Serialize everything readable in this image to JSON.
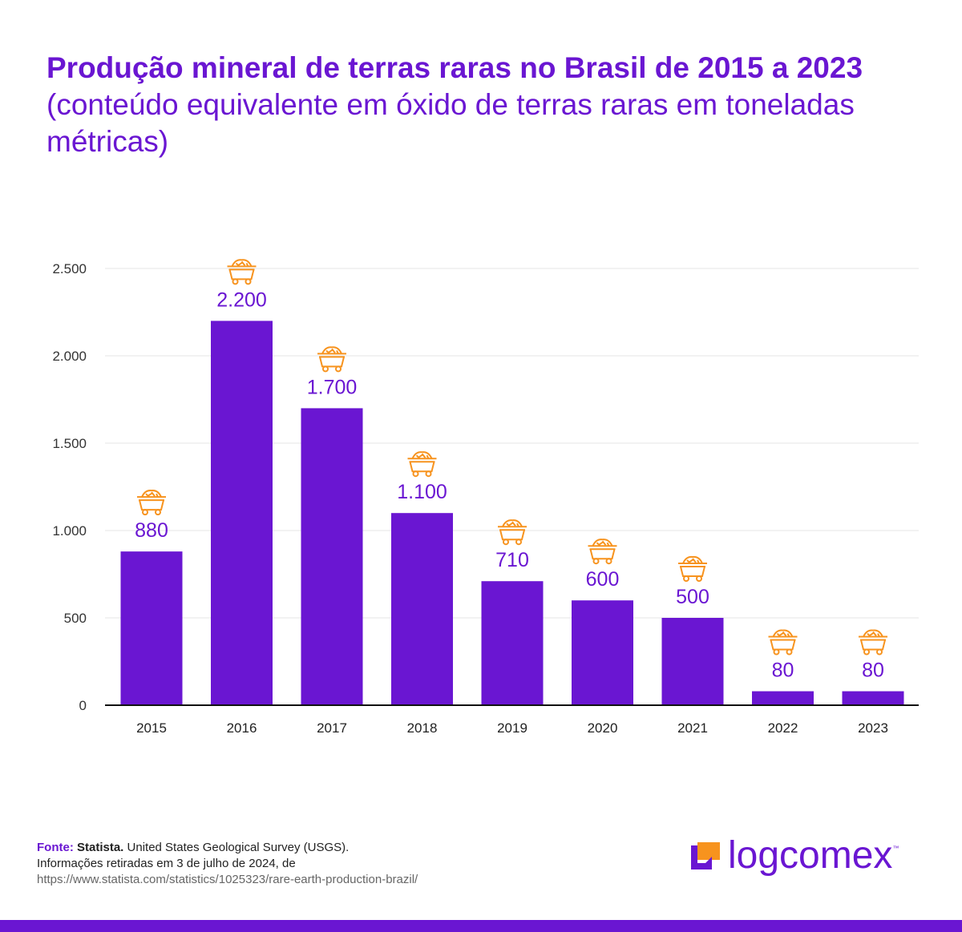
{
  "title": {
    "bold": "Produção mineral de terras raras no Brasil de 2015 a 2023",
    "regular": " (conteúdo equivalente em óxido de terras raras em toneladas métricas)"
  },
  "chart_data": {
    "type": "bar",
    "categories": [
      "2015",
      "2016",
      "2017",
      "2018",
      "2019",
      "2020",
      "2021",
      "2022",
      "2023"
    ],
    "values": [
      880,
      2200,
      1700,
      1100,
      710,
      600,
      500,
      80,
      80
    ],
    "data_labels": [
      "880",
      "2.200",
      "1.700",
      "1.100",
      "710",
      "600",
      "500",
      "80",
      "80"
    ],
    "ylim": [
      0,
      2500
    ],
    "yticks": [
      0,
      500,
      1000,
      1500,
      2000,
      2500
    ],
    "ytick_labels": [
      "0",
      "500",
      "1.000",
      "1.500",
      "2.000",
      "2.500"
    ],
    "xlabel": "",
    "ylabel": "",
    "grid": true,
    "bar_color": "#6a16d2",
    "icon": "mine-cart-icon",
    "icon_color": "#f7931e"
  },
  "footer": {
    "source_label": "Fonte:",
    "source_name": "Statista.",
    "source_rest": " United States Geological Survey (USGS).",
    "line2": "Informações retiradas em 3 de julho de 2024, de",
    "url": "https://www.statista.com/statistics/1025323/rare-earth-production-brazil/"
  },
  "logo": {
    "text": "logcomex",
    "tm": "™",
    "colors": {
      "primary": "#6a16d2",
      "accent": "#f7931e"
    }
  }
}
